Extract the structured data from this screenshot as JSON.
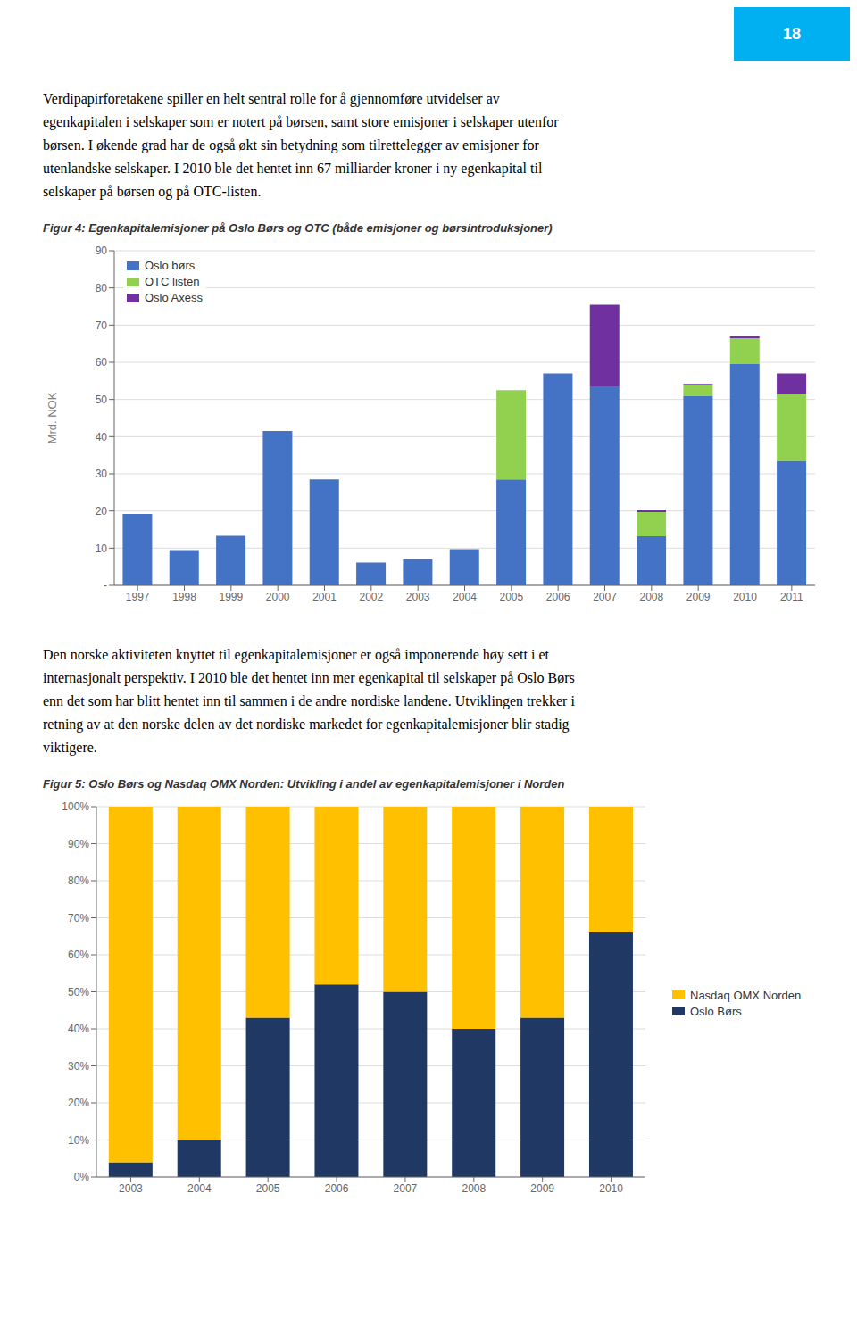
{
  "chart_data": [
    {
      "type": "bar",
      "title": "Figur 4: Egenkapitalemisjoner på Oslo Børs og OTC (både emisjoner og børsintroduksjoner)",
      "annotations": [
        "18",
        "Verdipapirforetakene spiller en helt sentral rolle for å gjennomføre utvidelser av",
        "egenkapitalen i selskaper som er notert på børsen, samt store emisjoner i selskaper utenfor",
        "børsen. I økende grad har de også økt sin betydning som tilrettelegger av emisjoner for",
        "utenlandske selskaper. I 2010 ble det hentet inn 67 milliarder kroner i ny egenkapital til",
        "selskaper på børsen og på OTC-listen."
      ],
      "categories": [
        "1997",
        "1998",
        "1999",
        "2000",
        "2001",
        "2002",
        "2003",
        "2004",
        "2005",
        "2006",
        "2007",
        "2008",
        "2009",
        "2010",
        "2011"
      ],
      "series": [
        {
          "name": "Oslo børs",
          "color": "#4472C4",
          "values": [
            19.2,
            9.5,
            13.3,
            41.5,
            28.5,
            6.1,
            7.0,
            9.7,
            28.5,
            57.0,
            53.5,
            13.2,
            51.0,
            59.5,
            33.5
          ]
        },
        {
          "name": "OTC listen",
          "color": "#92D050",
          "values": [
            0,
            0,
            0,
            0,
            0,
            0,
            0,
            0,
            24.0,
            0,
            0,
            6.5,
            3.0,
            7.0,
            18.0
          ]
        },
        {
          "name": "Oslo Axess",
          "color": "#7030A0",
          "values": [
            0,
            0,
            0,
            0,
            0,
            0,
            0,
            0,
            0,
            0,
            22.0,
            0.7,
            0.2,
            0.5,
            5.5
          ]
        }
      ],
      "stacked": true,
      "ylabel": "Mrd. NOK",
      "ylim": [
        0,
        90
      ],
      "yticks": [
        {
          "value": 0,
          "label": "-"
        },
        10,
        20,
        30,
        40,
        50,
        60,
        70,
        80,
        90
      ],
      "grid": true,
      "legend": "upper left"
    },
    {
      "type": "bar",
      "title": "Figur 5: Oslo Børs og Nasdaq OMX Norden: Utvikling i andel av egenkapitalemisjoner i Norden",
      "annotations": [
        "Den norske aktiviteten knyttet til egenkapitalemisjoner er også imponerende høy sett i et",
        "internasjonalt perspektiv. I 2010 ble det hentet inn mer egenkapital til selskaper på Oslo Børs",
        "enn det som har blitt hentet inn til sammen i de andre nordiske landene. Utviklingen trekker i",
        "retning av at den norske delen av det nordiske markedet for egenkapitalemisjoner blir stadig",
        "viktigere."
      ],
      "categories": [
        "2003",
        "2004",
        "2005",
        "2006",
        "2007",
        "2008",
        "2009",
        "2010"
      ],
      "series": [
        {
          "name": "Oslo Børs",
          "color": "#1F3864",
          "values": [
            4,
            10,
            43,
            52,
            50,
            40,
            43,
            66
          ]
        },
        {
          "name": "Nasdaq OMX Norden",
          "color": "#FFC000",
          "values": [
            96,
            90,
            57,
            48,
            50,
            60,
            57,
            34
          ]
        }
      ],
      "stacked": true,
      "ylim": [
        0,
        100
      ],
      "yticks": [
        {
          "value": 0,
          "label": "0%"
        },
        {
          "value": 10,
          "label": "10%"
        },
        {
          "value": 20,
          "label": "20%"
        },
        {
          "value": 30,
          "label": "30%"
        },
        {
          "value": 40,
          "label": "40%"
        },
        {
          "value": 50,
          "label": "50%"
        },
        {
          "value": 60,
          "label": "60%"
        },
        {
          "value": 70,
          "label": "70%"
        },
        {
          "value": 80,
          "label": "80%"
        },
        {
          "value": 90,
          "label": "90%"
        },
        {
          "value": 100,
          "label": "100%"
        }
      ],
      "grid": true,
      "legend": "right"
    }
  ]
}
